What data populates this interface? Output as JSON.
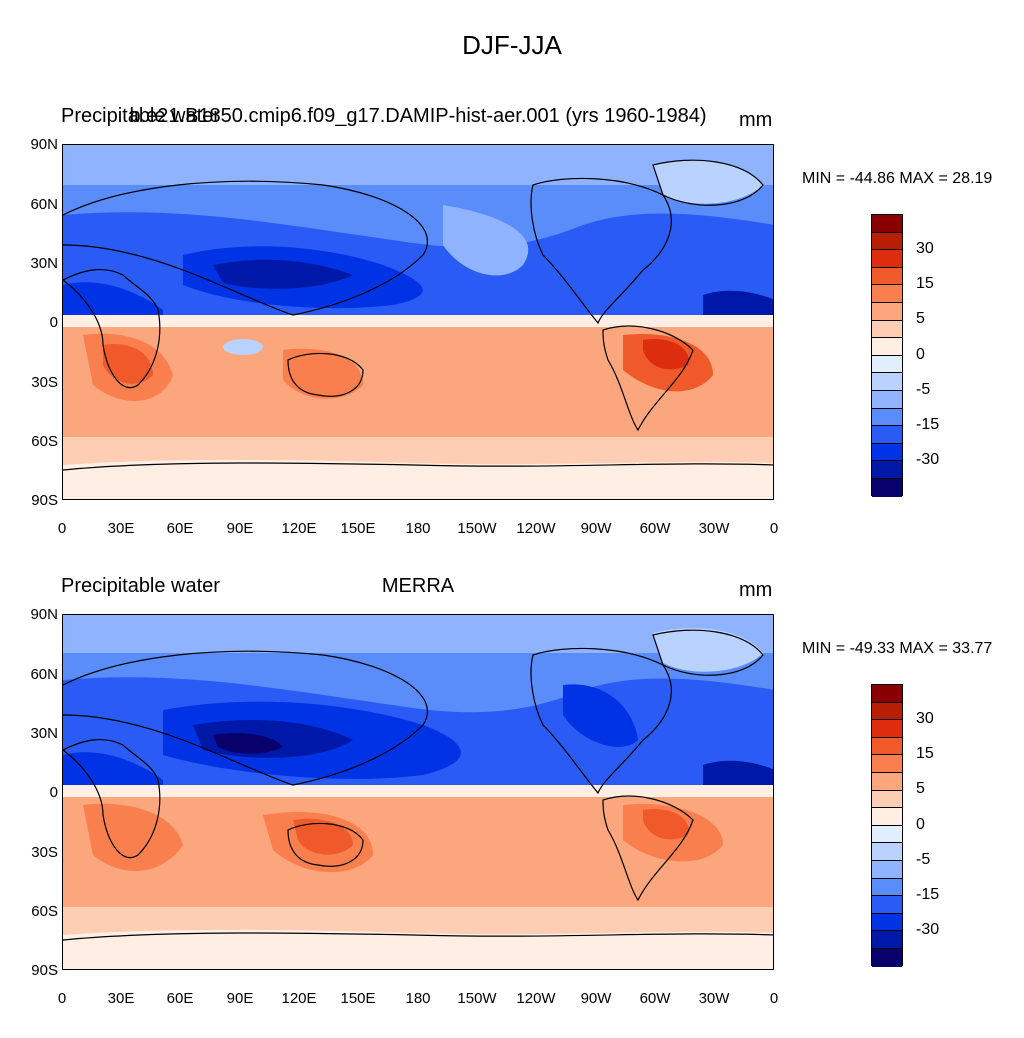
{
  "title": "DJF-JJA",
  "colors": [
    "#08006b",
    "#0018a8",
    "#0033e6",
    "#2a5cf5",
    "#5a8dfa",
    "#8fb3ff",
    "#b9d2ff",
    "#e1eeff",
    "#ffeee3",
    "#fdcdb4",
    "#fba67c",
    "#f97f4e",
    "#f05a2a",
    "#de2d0e",
    "#b81e05",
    "#8a0000"
  ],
  "colorbar_labels": [
    "30",
    "15",
    "5",
    "0",
    "-5",
    "-15",
    "-30"
  ],
  "lat_labels": [
    "90N",
    "60N",
    "30N",
    "0",
    "30S",
    "60S",
    "90S"
  ],
  "lon_labels": [
    "0",
    "30E",
    "60E",
    "90E",
    "120E",
    "150E",
    "180",
    "150W",
    "120W",
    "90W",
    "60W",
    "30W",
    "0"
  ],
  "panels": [
    {
      "left": "Precipitable water",
      "center": "b.e21.B1850.cmip6.f09_g17.DAMIP-hist-aer.001 (yrs 1960-1984)",
      "units": "mm",
      "stats": "MIN = -44.86 MAX =  28.19"
    },
    {
      "left": "Precipitable water",
      "center": "MERRA",
      "units": "mm",
      "stats": "MIN = -49.33 MAX =  33.77"
    }
  ]
}
